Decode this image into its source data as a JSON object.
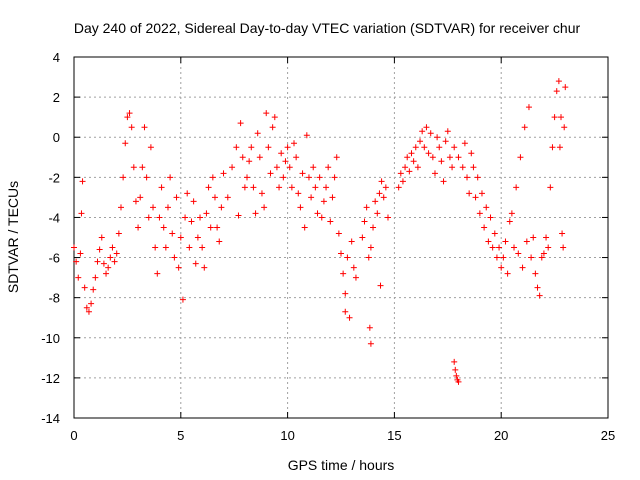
{
  "chart_data": {
    "type": "scatter",
    "title": "Day 240 of 2022, Sidereal Day-to-day VTEC variation (SDTVAR) for receiver chur",
    "xlabel": "GPS time / hours",
    "ylabel": "SDTVAR / TECUs",
    "xlim": [
      0,
      25
    ],
    "ylim": [
      -14,
      4
    ],
    "xticks": [
      0,
      5,
      10,
      15,
      20,
      25
    ],
    "yticks": [
      -14,
      -12,
      -10,
      -8,
      -6,
      -4,
      -2,
      0,
      2,
      4
    ],
    "grid": true,
    "marker": "+",
    "color": "#ff0000",
    "series": [
      {
        "name": "SDTVAR",
        "points": [
          [
            0.0,
            -5.5
          ],
          [
            0.1,
            -6.2
          ],
          [
            0.2,
            -7.0
          ],
          [
            0.3,
            -5.8
          ],
          [
            0.35,
            -3.8
          ],
          [
            0.4,
            -2.2
          ],
          [
            0.5,
            -7.5
          ],
          [
            0.6,
            -8.5
          ],
          [
            0.7,
            -8.7
          ],
          [
            0.8,
            -8.3
          ],
          [
            0.9,
            -7.6
          ],
          [
            1.0,
            -7.0
          ],
          [
            1.1,
            -6.2
          ],
          [
            1.2,
            -5.6
          ],
          [
            1.3,
            -5.0
          ],
          [
            1.4,
            -6.3
          ],
          [
            1.5,
            -6.8
          ],
          [
            1.6,
            -6.5
          ],
          [
            1.7,
            -6.0
          ],
          [
            1.8,
            -5.5
          ],
          [
            1.9,
            -6.2
          ],
          [
            2.0,
            -5.8
          ],
          [
            2.1,
            -4.8
          ],
          [
            2.2,
            -3.5
          ],
          [
            2.3,
            -2.0
          ],
          [
            2.4,
            -0.3
          ],
          [
            2.5,
            1.0
          ],
          [
            2.6,
            1.2
          ],
          [
            2.7,
            0.5
          ],
          [
            2.8,
            -1.5
          ],
          [
            2.9,
            -3.2
          ],
          [
            3.0,
            -4.5
          ],
          [
            3.1,
            -3.0
          ],
          [
            3.2,
            -1.5
          ],
          [
            3.3,
            0.5
          ],
          [
            3.4,
            -2.0
          ],
          [
            3.5,
            -4.0
          ],
          [
            3.6,
            -0.5
          ],
          [
            3.7,
            -3.5
          ],
          [
            3.8,
            -5.5
          ],
          [
            3.9,
            -6.8
          ],
          [
            4.0,
            -4.0
          ],
          [
            4.1,
            -2.5
          ],
          [
            4.2,
            -4.5
          ],
          [
            4.3,
            -5.5
          ],
          [
            4.4,
            -3.5
          ],
          [
            4.5,
            -2.0
          ],
          [
            4.6,
            -4.8
          ],
          [
            4.7,
            -6.0
          ],
          [
            4.8,
            -3.0
          ],
          [
            4.9,
            -6.5
          ],
          [
            5.0,
            -5.0
          ],
          [
            5.1,
            -8.1
          ],
          [
            5.2,
            -4.0
          ],
          [
            5.3,
            -2.8
          ],
          [
            5.4,
            -5.5
          ],
          [
            5.5,
            -4.2
          ],
          [
            5.6,
            -3.2
          ],
          [
            5.7,
            -6.3
          ],
          [
            5.8,
            -5.0
          ],
          [
            5.9,
            -4.0
          ],
          [
            6.0,
            -5.5
          ],
          [
            6.1,
            -6.5
          ],
          [
            6.2,
            -3.8
          ],
          [
            6.3,
            -2.5
          ],
          [
            6.4,
            -4.5
          ],
          [
            6.5,
            -2.0
          ],
          [
            6.6,
            -3.0
          ],
          [
            6.7,
            -4.5
          ],
          [
            6.8,
            -5.2
          ],
          [
            6.9,
            -3.5
          ],
          [
            7.0,
            -1.8
          ],
          [
            7.2,
            -3.0
          ],
          [
            7.4,
            -1.5
          ],
          [
            7.6,
            -0.5
          ],
          [
            7.7,
            -3.9
          ],
          [
            7.8,
            0.7
          ],
          [
            7.9,
            -1.0
          ],
          [
            8.0,
            -2.5
          ],
          [
            8.1,
            -2.0
          ],
          [
            8.2,
            -1.2
          ],
          [
            8.3,
            -0.5
          ],
          [
            8.4,
            -2.5
          ],
          [
            8.5,
            -3.8
          ],
          [
            8.6,
            0.2
          ],
          [
            8.7,
            -1.0
          ],
          [
            8.8,
            -2.8
          ],
          [
            8.9,
            -3.5
          ],
          [
            9.0,
            1.2
          ],
          [
            9.1,
            -0.5
          ],
          [
            9.2,
            -1.8
          ],
          [
            9.3,
            0.5
          ],
          [
            9.4,
            1.0
          ],
          [
            9.5,
            -1.5
          ],
          [
            9.6,
            -2.5
          ],
          [
            9.7,
            -0.8
          ],
          [
            9.8,
            -2.0
          ],
          [
            9.9,
            -1.2
          ],
          [
            10.0,
            -0.5
          ],
          [
            10.1,
            -1.5
          ],
          [
            10.2,
            -2.5
          ],
          [
            10.3,
            -0.3
          ],
          [
            10.4,
            -1.0
          ],
          [
            10.5,
            -2.8
          ],
          [
            10.6,
            -3.5
          ],
          [
            10.7,
            -1.8
          ],
          [
            10.8,
            -4.5
          ],
          [
            10.9,
            0.1
          ],
          [
            11.0,
            -2.0
          ],
          [
            11.1,
            -3.0
          ],
          [
            11.2,
            -1.5
          ],
          [
            11.3,
            -2.5
          ],
          [
            11.4,
            -3.8
          ],
          [
            11.5,
            -2.0
          ],
          [
            11.6,
            -4.0
          ],
          [
            11.7,
            -3.2
          ],
          [
            11.8,
            -2.5
          ],
          [
            11.9,
            -1.5
          ],
          [
            12.0,
            -4.2
          ],
          [
            12.1,
            -3.0
          ],
          [
            12.2,
            -2.0
          ],
          [
            12.3,
            -1.0
          ],
          [
            12.4,
            -4.8
          ],
          [
            12.5,
            -5.8
          ],
          [
            12.6,
            -6.8
          ],
          [
            12.7,
            -7.8
          ],
          [
            12.7,
            -8.7
          ],
          [
            12.8,
            -6.0
          ],
          [
            12.9,
            -9.0
          ],
          [
            13.0,
            -5.2
          ],
          [
            13.1,
            -6.5
          ],
          [
            13.2,
            -7.0
          ],
          [
            13.5,
            -5.0
          ],
          [
            13.6,
            -4.2
          ],
          [
            13.7,
            -3.5
          ],
          [
            13.8,
            -6.0
          ],
          [
            13.85,
            -9.5
          ],
          [
            13.9,
            -10.3
          ],
          [
            13.9,
            -5.5
          ],
          [
            14.0,
            -4.5
          ],
          [
            14.1,
            -3.2
          ],
          [
            14.2,
            -3.8
          ],
          [
            14.3,
            -2.8
          ],
          [
            14.35,
            -7.4
          ],
          [
            14.4,
            -2.2
          ],
          [
            14.5,
            -3.0
          ],
          [
            14.6,
            -2.5
          ],
          [
            14.7,
            -4.0
          ],
          [
            15.2,
            -2.5
          ],
          [
            15.3,
            -1.8
          ],
          [
            15.4,
            -2.2
          ],
          [
            15.5,
            -1.5
          ],
          [
            15.6,
            -1.0
          ],
          [
            15.7,
            -1.7
          ],
          [
            15.8,
            -0.8
          ],
          [
            15.9,
            -1.2
          ],
          [
            16.0,
            -0.5
          ],
          [
            16.1,
            -1.5
          ],
          [
            16.2,
            -0.2
          ],
          [
            16.3,
            0.3
          ],
          [
            16.4,
            -0.5
          ],
          [
            16.5,
            0.5
          ],
          [
            16.6,
            -0.8
          ],
          [
            16.7,
            0.2
          ],
          [
            16.8,
            -1.0
          ],
          [
            16.9,
            -1.8
          ],
          [
            17.0,
            0.0
          ],
          [
            17.1,
            -0.5
          ],
          [
            17.2,
            -1.2
          ],
          [
            17.3,
            -2.2
          ],
          [
            17.4,
            -0.2
          ],
          [
            17.5,
            0.3
          ],
          [
            17.6,
            -1.0
          ],
          [
            17.7,
            -1.5
          ],
          [
            17.8,
            -0.5
          ],
          [
            17.8,
            -11.2
          ],
          [
            17.85,
            -11.6
          ],
          [
            17.9,
            -11.9
          ],
          [
            17.95,
            -12.1
          ],
          [
            18.0,
            -12.2
          ],
          [
            18.0,
            -1.0
          ],
          [
            18.2,
            -1.5
          ],
          [
            18.3,
            -0.3
          ],
          [
            18.4,
            -2.0
          ],
          [
            18.5,
            -2.8
          ],
          [
            18.6,
            -0.8
          ],
          [
            18.7,
            -1.5
          ],
          [
            18.8,
            -3.0
          ],
          [
            18.9,
            -2.0
          ],
          [
            19.0,
            -3.8
          ],
          [
            19.1,
            -2.8
          ],
          [
            19.2,
            -4.5
          ],
          [
            19.3,
            -3.5
          ],
          [
            19.4,
            -5.2
          ],
          [
            19.5,
            -4.0
          ],
          [
            19.6,
            -5.5
          ],
          [
            19.7,
            -4.8
          ],
          [
            19.8,
            -6.0
          ],
          [
            19.9,
            -5.5
          ],
          [
            20.0,
            -6.5
          ],
          [
            20.1,
            -6.0
          ],
          [
            20.2,
            -5.2
          ],
          [
            20.3,
            -6.8
          ],
          [
            20.4,
            -4.2
          ],
          [
            20.5,
            -3.8
          ],
          [
            20.6,
            -5.5
          ],
          [
            20.7,
            -2.5
          ],
          [
            20.8,
            -5.8
          ],
          [
            20.9,
            -1.0
          ],
          [
            21.0,
            -6.5
          ],
          [
            21.1,
            0.5
          ],
          [
            21.2,
            -5.2
          ],
          [
            21.3,
            1.5
          ],
          [
            21.4,
            -6.0
          ],
          [
            21.5,
            -5.0
          ],
          [
            21.6,
            -6.8
          ],
          [
            21.7,
            -7.5
          ],
          [
            21.8,
            -7.9
          ],
          [
            21.9,
            -6.0
          ],
          [
            22.0,
            -5.8
          ],
          [
            22.1,
            -5.0
          ],
          [
            22.2,
            -5.5
          ],
          [
            22.3,
            -2.5
          ],
          [
            22.4,
            -0.5
          ],
          [
            22.5,
            1.0
          ],
          [
            22.6,
            2.3
          ],
          [
            22.7,
            2.8
          ],
          [
            22.75,
            -0.5
          ],
          [
            22.8,
            1.0
          ],
          [
            22.85,
            -4.8
          ],
          [
            22.9,
            -5.5
          ],
          [
            22.95,
            0.5
          ],
          [
            23.0,
            2.5
          ]
        ]
      }
    ]
  }
}
